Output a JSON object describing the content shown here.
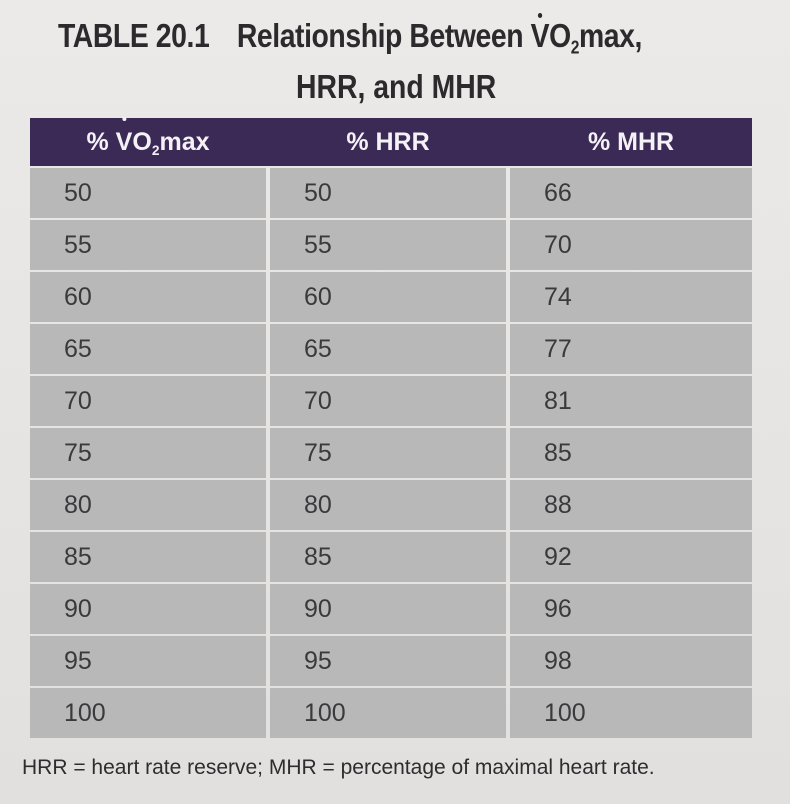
{
  "title": {
    "table_number": "TABLE 20.1",
    "heading_prefix": "Relationship Between ",
    "heading_v": "V",
    "heading_o": "O",
    "heading_sub": "2",
    "heading_suffix": "max,",
    "heading_line2": "HRR, and MHR"
  },
  "table": {
    "headers": {
      "col1_prefix": "% ",
      "col1_v": "V",
      "col1_o": "O",
      "col1_sub": "2",
      "col1_suffix": "max",
      "col2": "% HRR",
      "col3": "% MHR"
    },
    "rows": [
      [
        "50",
        "50",
        "66"
      ],
      [
        "55",
        "55",
        "70"
      ],
      [
        "60",
        "60",
        "74"
      ],
      [
        "65",
        "65",
        "77"
      ],
      [
        "70",
        "70",
        "81"
      ],
      [
        "75",
        "75",
        "85"
      ],
      [
        "80",
        "80",
        "88"
      ],
      [
        "85",
        "85",
        "92"
      ],
      [
        "90",
        "90",
        "96"
      ],
      [
        "95",
        "95",
        "98"
      ],
      [
        "100",
        "100",
        "100"
      ]
    ]
  },
  "footnote": "HRR = heart rate reserve; MHR = percentage of maximal heart rate."
}
